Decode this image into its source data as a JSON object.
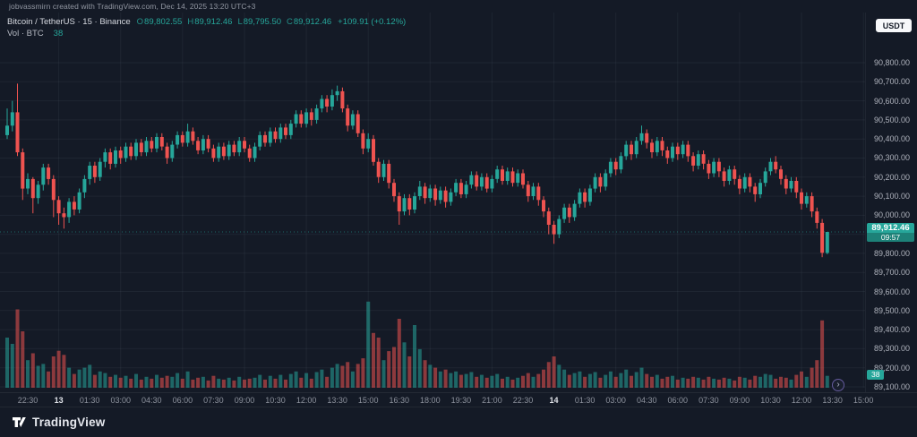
{
  "attribution": "jobvassmirn created with TradingView.com, Dec 14, 2025 13:20 UTC+3",
  "header": {
    "title": "Bitcoin / TetherUS · 15 · Binance",
    "ohlc": [
      [
        "O",
        "89,802.55"
      ],
      [
        "H",
        "89,912.46"
      ],
      [
        "L",
        "89,795.50"
      ],
      [
        "C",
        "89,912.46"
      ]
    ],
    "change": "+109.91 (+0.12%)",
    "volume_label": "Vol · BTC",
    "volume_value": "38"
  },
  "price_axis": {
    "currency_button": "USDT"
  },
  "footer": {
    "brand": "TradingView"
  },
  "icons": {
    "chevron_right": "›",
    "tradingview_logo": "tradingview-mark"
  },
  "colors": {
    "background": "#141a26",
    "up": "#26a69a",
    "down": "#ef5350",
    "grid": "rgba(170,182,204,0.07)",
    "axis_text": "#aeb2bc",
    "label_bg": "#26a69a"
  },
  "chart_data": {
    "type": "candlestick",
    "symbol": "Bitcoin / TetherUS",
    "interval_minutes": 15,
    "exchange": "Binance",
    "quote_currency": "USDT",
    "volume_unit": "BTC",
    "legend_ohlc": {
      "open": "89,802.55",
      "high": "89,912.46",
      "low": "89,795.50",
      "close": "89,912.46",
      "change": "+109.91 (+0.12%)"
    },
    "last": {
      "price": 89912.46,
      "price_text": "89,912.46",
      "countdown": "09:57",
      "volume": 38,
      "volume_text": "38"
    },
    "y_axis": {
      "min": 89100,
      "max": 90800,
      "step": 100,
      "tick_labels": [
        "90,800.00",
        "90,700.00",
        "90,600.00",
        "90,500.00",
        "90,400.00",
        "90,300.00",
        "90,200.00",
        "90,100.00",
        "90,000.00",
        "89,900.00",
        "89,800.00",
        "89,700.00",
        "89,600.00",
        "89,500.00",
        "89,400.00",
        "89,300.00",
        "89,200.00",
        "89,100.00"
      ]
    },
    "x_axis": {
      "labels": [
        [
          "22:30",
          0
        ],
        [
          "13",
          1
        ],
        [
          "01:30",
          0
        ],
        [
          "03:00",
          0
        ],
        [
          "04:30",
          0
        ],
        [
          "06:00",
          0
        ],
        [
          "07:30",
          0
        ],
        [
          "09:00",
          0
        ],
        [
          "10:30",
          0
        ],
        [
          "12:00",
          0
        ],
        [
          "13:30",
          0
        ],
        [
          "15:00",
          0
        ],
        [
          "16:30",
          0
        ],
        [
          "18:00",
          0
        ],
        [
          "19:30",
          0
        ],
        [
          "21:00",
          0
        ],
        [
          "22:30",
          0
        ],
        [
          "14",
          1
        ],
        [
          "01:30",
          0
        ],
        [
          "03:00",
          0
        ],
        [
          "04:30",
          0
        ],
        [
          "06:00",
          0
        ],
        [
          "07:30",
          0
        ],
        [
          "09:00",
          0
        ],
        [
          "10:30",
          0
        ],
        [
          "12:00",
          0
        ],
        [
          "13:30",
          0
        ],
        [
          "15:00",
          0
        ]
      ]
    },
    "candles_format": [
      "open",
      "high",
      "low",
      "close",
      "volume_btc"
    ],
    "candles": [
      [
        90420,
        90560,
        90400,
        90470,
        160
      ],
      [
        90470,
        90600,
        90440,
        90540,
        140
      ],
      [
        90540,
        90690,
        90310,
        90330,
        250
      ],
      [
        90330,
        90350,
        90080,
        90140,
        180
      ],
      [
        90140,
        90220,
        90110,
        90190,
        88
      ],
      [
        90190,
        90200,
        90010,
        90090,
        110
      ],
      [
        90090,
        90180,
        90060,
        90160,
        70
      ],
      [
        90160,
        90270,
        90130,
        90250,
        76
      ],
      [
        90250,
        90270,
        90160,
        90190,
        52
      ],
      [
        90190,
        90210,
        89990,
        90080,
        100
      ],
      [
        90080,
        90100,
        89950,
        90010,
        118
      ],
      [
        90010,
        90040,
        89930,
        89990,
        105
      ],
      [
        89990,
        90090,
        89960,
        90070,
        64
      ],
      [
        90070,
        90100,
        90000,
        90030,
        44
      ],
      [
        90030,
        90140,
        90010,
        90120,
        58
      ],
      [
        90120,
        90210,
        90090,
        90190,
        64
      ],
      [
        90190,
        90280,
        90160,
        90260,
        73
      ],
      [
        90260,
        90280,
        90170,
        90200,
        41
      ],
      [
        90200,
        90300,
        90180,
        90280,
        52
      ],
      [
        90280,
        90350,
        90250,
        90330,
        47
      ],
      [
        90330,
        90350,
        90240,
        90270,
        35
      ],
      [
        90270,
        90360,
        90250,
        90340,
        41
      ],
      [
        90340,
        90360,
        90270,
        90300,
        32
      ],
      [
        90300,
        90380,
        90280,
        90360,
        38
      ],
      [
        90360,
        90380,
        90290,
        90310,
        29
      ],
      [
        90310,
        90400,
        90290,
        90380,
        44
      ],
      [
        90380,
        90400,
        90310,
        90330,
        26
      ],
      [
        90330,
        90410,
        90310,
        90390,
        35
      ],
      [
        90390,
        90410,
        90330,
        90350,
        29
      ],
      [
        90350,
        90430,
        90330,
        90410,
        41
      ],
      [
        90410,
        90430,
        90340,
        90360,
        32
      ],
      [
        90360,
        90380,
        90270,
        90300,
        38
      ],
      [
        90300,
        90390,
        90280,
        90370,
        35
      ],
      [
        90370,
        90440,
        90350,
        90420,
        47
      ],
      [
        90420,
        90440,
        90360,
        90380,
        29
      ],
      [
        90380,
        90480,
        90360,
        90440,
        52
      ],
      [
        90440,
        90460,
        90370,
        90390,
        26
      ],
      [
        90390,
        90410,
        90320,
        90340,
        32
      ],
      [
        90340,
        90420,
        90320,
        90400,
        35
      ],
      [
        90400,
        90420,
        90330,
        90350,
        23
      ],
      [
        90350,
        90370,
        90280,
        90300,
        38
      ],
      [
        90300,
        90380,
        90280,
        90360,
        29
      ],
      [
        90360,
        90380,
        90290,
        90310,
        26
      ],
      [
        90310,
        90390,
        90290,
        90370,
        32
      ],
      [
        90370,
        90390,
        90310,
        90330,
        23
      ],
      [
        90330,
        90410,
        90310,
        90390,
        35
      ],
      [
        90390,
        90410,
        90330,
        90350,
        26
      ],
      [
        90350,
        90370,
        90280,
        90300,
        29
      ],
      [
        90300,
        90380,
        90280,
        90360,
        32
      ],
      [
        90360,
        90440,
        90340,
        90420,
        41
      ],
      [
        90420,
        90440,
        90360,
        90380,
        26
      ],
      [
        90380,
        90460,
        90360,
        90440,
        38
      ],
      [
        90440,
        90460,
        90380,
        90400,
        29
      ],
      [
        90400,
        90480,
        90380,
        90460,
        41
      ],
      [
        90460,
        90480,
        90400,
        90420,
        26
      ],
      [
        90420,
        90500,
        90400,
        90480,
        44
      ],
      [
        90480,
        90550,
        90460,
        90530,
        52
      ],
      [
        90530,
        90550,
        90460,
        90480,
        32
      ],
      [
        90480,
        90560,
        90460,
        90540,
        47
      ],
      [
        90540,
        90560,
        90470,
        90500,
        29
      ],
      [
        90500,
        90580,
        90480,
        90560,
        50
      ],
      [
        90560,
        90630,
        90540,
        90610,
        58
      ],
      [
        90610,
        90630,
        90540,
        90570,
        35
      ],
      [
        90570,
        90660,
        90550,
        90630,
        64
      ],
      [
        90630,
        90680,
        90600,
        90650,
        76
      ],
      [
        90650,
        90670,
        90540,
        90560,
        70
      ],
      [
        90560,
        90580,
        90440,
        90470,
        82
      ],
      [
        90470,
        90550,
        90450,
        90530,
        52
      ],
      [
        90530,
        90550,
        90410,
        90430,
        76
      ],
      [
        90430,
        90450,
        90320,
        90350,
        94
      ],
      [
        90350,
        90430,
        90330,
        90400,
        275
      ],
      [
        90400,
        90420,
        90260,
        90280,
        175
      ],
      [
        90280,
        90300,
        90170,
        90200,
        160
      ],
      [
        90200,
        90290,
        90180,
        90270,
        88
      ],
      [
        90270,
        90290,
        90140,
        90170,
        117
      ],
      [
        90170,
        90190,
        90070,
        90100,
        130
      ],
      [
        90100,
        90120,
        89950,
        90020,
        220
      ],
      [
        90020,
        90110,
        90000,
        90090,
        145
      ],
      [
        90090,
        90110,
        90000,
        90030,
        100
      ],
      [
        90030,
        90120,
        90010,
        90100,
        200
      ],
      [
        90100,
        90180,
        90080,
        90150,
        123
      ],
      [
        90150,
        90170,
        90060,
        90090,
        88
      ],
      [
        90090,
        90160,
        90070,
        90140,
        73
      ],
      [
        90140,
        90160,
        90050,
        90080,
        64
      ],
      [
        90080,
        90150,
        90060,
        90130,
        52
      ],
      [
        90130,
        90150,
        90040,
        90070,
        58
      ],
      [
        90070,
        90140,
        90050,
        90120,
        47
      ],
      [
        90120,
        90190,
        90100,
        90170,
        52
      ],
      [
        90170,
        90190,
        90090,
        90110,
        41
      ],
      [
        90110,
        90180,
        90090,
        90160,
        44
      ],
      [
        90160,
        90230,
        90140,
        90210,
        50
      ],
      [
        90210,
        90230,
        90130,
        90150,
        35
      ],
      [
        90150,
        90220,
        90130,
        90200,
        41
      ],
      [
        90200,
        90220,
        90120,
        90140,
        32
      ],
      [
        90140,
        90210,
        90120,
        90190,
        38
      ],
      [
        90190,
        90260,
        90170,
        90240,
        44
      ],
      [
        90240,
        90260,
        90160,
        90180,
        29
      ],
      [
        90180,
        90250,
        90160,
        90230,
        35
      ],
      [
        90230,
        90250,
        90150,
        90170,
        26
      ],
      [
        90170,
        90240,
        90150,
        90220,
        32
      ],
      [
        90220,
        90240,
        90140,
        90160,
        38
      ],
      [
        90160,
        90180,
        90070,
        90100,
        47
      ],
      [
        90100,
        90170,
        90080,
        90150,
        35
      ],
      [
        90150,
        90170,
        90050,
        90080,
        44
      ],
      [
        90080,
        90100,
        89990,
        90020,
        58
      ],
      [
        90020,
        90040,
        89900,
        89950,
        82
      ],
      [
        89950,
        89970,
        89850,
        89900,
        100
      ],
      [
        89900,
        90000,
        89880,
        89980,
        73
      ],
      [
        89980,
        90060,
        89960,
        90040,
        58
      ],
      [
        90040,
        90060,
        89960,
        89990,
        41
      ],
      [
        89990,
        90080,
        89970,
        90060,
        47
      ],
      [
        90060,
        90140,
        90040,
        90120,
        52
      ],
      [
        90120,
        90140,
        90040,
        90070,
        35
      ],
      [
        90070,
        90160,
        90050,
        90140,
        44
      ],
      [
        90140,
        90220,
        90120,
        90200,
        50
      ],
      [
        90200,
        90220,
        90120,
        90150,
        32
      ],
      [
        90150,
        90240,
        90130,
        90220,
        41
      ],
      [
        90220,
        90300,
        90200,
        90280,
        52
      ],
      [
        90280,
        90300,
        90210,
        90240,
        35
      ],
      [
        90240,
        90330,
        90220,
        90310,
        47
      ],
      [
        90310,
        90390,
        90290,
        90370,
        58
      ],
      [
        90370,
        90390,
        90290,
        90320,
        38
      ],
      [
        90320,
        90410,
        90300,
        90390,
        50
      ],
      [
        90390,
        90470,
        90370,
        90430,
        64
      ],
      [
        90430,
        90450,
        90350,
        90380,
        44
      ],
      [
        90380,
        90400,
        90300,
        90330,
        35
      ],
      [
        90330,
        90410,
        90310,
        90390,
        41
      ],
      [
        90390,
        90410,
        90310,
        90340,
        29
      ],
      [
        90340,
        90360,
        90270,
        90300,
        35
      ],
      [
        90300,
        90380,
        90280,
        90360,
        38
      ],
      [
        90360,
        90380,
        90290,
        90320,
        26
      ],
      [
        90320,
        90390,
        90300,
        90370,
        32
      ],
      [
        90370,
        90390,
        90280,
        90310,
        29
      ],
      [
        90310,
        90330,
        90230,
        90260,
        35
      ],
      [
        90260,
        90340,
        90240,
        90320,
        32
      ],
      [
        90320,
        90340,
        90240,
        90270,
        26
      ],
      [
        90270,
        90290,
        90190,
        90220,
        35
      ],
      [
        90220,
        90300,
        90200,
        90280,
        29
      ],
      [
        90280,
        90300,
        90200,
        90230,
        26
      ],
      [
        90230,
        90250,
        90150,
        90180,
        32
      ],
      [
        90180,
        90260,
        90160,
        90240,
        29
      ],
      [
        90240,
        90260,
        90160,
        90190,
        23
      ],
      [
        90190,
        90210,
        90110,
        90140,
        35
      ],
      [
        90140,
        90220,
        90120,
        90200,
        32
      ],
      [
        90200,
        90220,
        90120,
        90150,
        26
      ],
      [
        90150,
        90170,
        90070,
        90110,
        38
      ],
      [
        90110,
        90190,
        90090,
        90170,
        35
      ],
      [
        90170,
        90250,
        90150,
        90230,
        44
      ],
      [
        90230,
        90300,
        90210,
        90280,
        41
      ],
      [
        90280,
        90310,
        90220,
        90240,
        29
      ],
      [
        90240,
        90260,
        90160,
        90190,
        35
      ],
      [
        90190,
        90210,
        90110,
        90140,
        32
      ],
      [
        90140,
        90200,
        90120,
        90180,
        26
      ],
      [
        90180,
        90200,
        90090,
        90120,
        41
      ],
      [
        90120,
        90140,
        90030,
        90060,
        52
      ],
      [
        90060,
        90120,
        90040,
        90100,
        35
      ],
      [
        90100,
        90120,
        89990,
        90020,
        64
      ],
      [
        90020,
        90040,
        89930,
        89960,
        88
      ],
      [
        89960,
        89980,
        89780,
        89803,
        215
      ],
      [
        89802.55,
        89912.46,
        89795.5,
        89912.46,
        38
      ]
    ]
  }
}
